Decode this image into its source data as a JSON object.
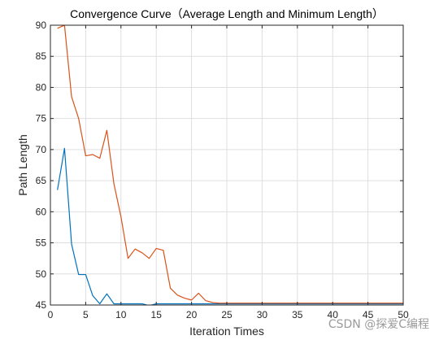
{
  "chart_data": {
    "type": "line",
    "title": "Convergence Curve（Average Length and Minimum Length）",
    "xlabel": "Iteration Times",
    "ylabel": "Path Length",
    "xlim": [
      0,
      50
    ],
    "ylim": [
      45,
      90
    ],
    "xticks": [
      0,
      5,
      10,
      15,
      20,
      25,
      30,
      35,
      40,
      45,
      50
    ],
    "yticks": [
      45,
      50,
      55,
      60,
      65,
      70,
      75,
      80,
      85,
      90
    ],
    "grid": true,
    "box": true,
    "series": [
      {
        "color": "#0072BD",
        "x": [
          1,
          2,
          3,
          4,
          5,
          6,
          7,
          8,
          9,
          10,
          11,
          12,
          13,
          14,
          15,
          16,
          17,
          18,
          19,
          20,
          21,
          22,
          23,
          24,
          25,
          26,
          27,
          28,
          29,
          30,
          31,
          32,
          33,
          34,
          35,
          36,
          37,
          38,
          39,
          40,
          41,
          42,
          43,
          44,
          45,
          46,
          47,
          48,
          49,
          50
        ],
        "y": [
          63.5,
          70.2,
          54.8,
          49.9,
          49.9,
          46.5,
          45.2,
          46.8,
          45.2,
          45.2,
          45.2,
          45.2,
          45.2,
          44.9,
          45.2,
          45.2,
          45.2,
          45.2,
          45.2,
          45.2,
          45.2,
          45.2,
          45.2,
          45.2,
          45.2,
          45.2,
          45.2,
          45.2,
          45.2,
          45.2,
          45.2,
          45.2,
          45.2,
          45.2,
          45.2,
          45.2,
          45.2,
          45.2,
          45.2,
          45.2,
          45.2,
          45.2,
          45.2,
          45.2,
          45.2,
          45.2,
          45.2,
          45.2,
          45.2,
          45.2
        ]
      },
      {
        "color": "#D95319",
        "x": [
          1,
          2,
          3,
          4,
          5,
          6,
          7,
          8,
          9,
          10,
          11,
          12,
          13,
          14,
          15,
          16,
          17,
          18,
          19,
          20,
          21,
          22,
          23,
          24,
          25,
          26,
          27,
          28,
          29,
          30,
          31,
          32,
          33,
          34,
          35,
          36,
          37,
          38,
          39,
          40,
          41,
          42,
          43,
          44,
          45,
          46,
          47,
          48,
          49,
          50
        ],
        "y": [
          89.5,
          90.0,
          78.5,
          75.0,
          69.0,
          69.2,
          68.6,
          73.1,
          64.5,
          59.2,
          52.5,
          54.0,
          53.4,
          52.5,
          54.1,
          53.8,
          47.7,
          46.6,
          46.1,
          45.8,
          46.9,
          45.7,
          45.4,
          45.3,
          45.3,
          45.3,
          45.3,
          45.3,
          45.3,
          45.3,
          45.3,
          45.3,
          45.3,
          45.3,
          45.3,
          45.3,
          45.3,
          45.3,
          45.3,
          45.3,
          45.3,
          45.3,
          45.3,
          45.3,
          45.3,
          45.3,
          45.3,
          45.3,
          45.3,
          45.3
        ]
      }
    ]
  },
  "watermark": "CSDN @探爱C编程"
}
